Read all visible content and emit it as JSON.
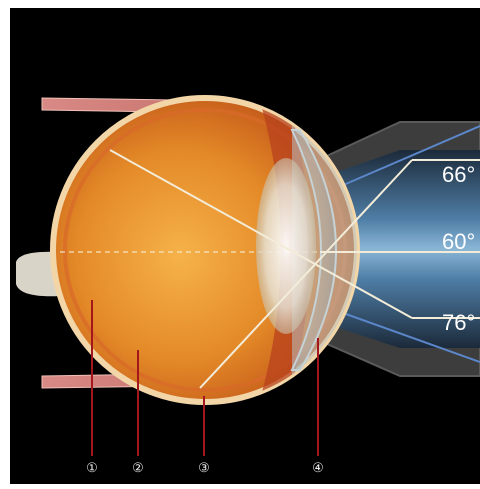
{
  "diagram": {
    "angles": [
      "66°",
      "60°",
      "76°"
    ],
    "markers": [
      "①",
      "②",
      "③",
      "④"
    ],
    "colors": {
      "background": "#000000",
      "eyeball": "#e48a28",
      "sclera_rim": "#f3d6a8",
      "visual_field": "#5a88ad",
      "bracket": "#4a4a4a",
      "leader_line": "#a3161b",
      "marker": "#e8e8e8",
      "ray": "#f2ecd8",
      "label_text": "#ffffff"
    }
  }
}
